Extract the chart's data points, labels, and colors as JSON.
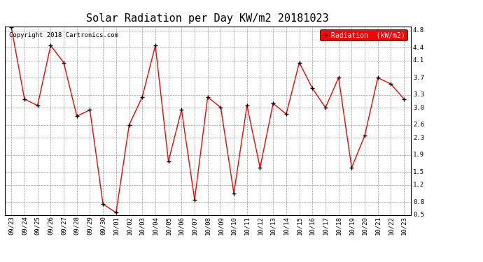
{
  "title": "Solar Radiation per Day KW/m2 20181023",
  "copyright_text": "Copyright 2018 Cartronics.com",
  "legend_label": "Radiation  (kW/m2)",
  "dates": [
    "09/23",
    "09/24",
    "09/25",
    "09/26",
    "09/27",
    "09/28",
    "09/29",
    "09/30",
    "10/01",
    "10/02",
    "10/03",
    "10/04",
    "10/05",
    "10/06",
    "10/07",
    "10/08",
    "10/09",
    "10/10",
    "10/11",
    "10/12",
    "10/13",
    "10/14",
    "10/15",
    "10/16",
    "10/17",
    "10/18",
    "10/19",
    "10/20",
    "10/21",
    "10/22",
    "10/23"
  ],
  "values": [
    4.87,
    3.2,
    3.05,
    4.45,
    4.05,
    2.8,
    2.95,
    0.75,
    0.55,
    2.6,
    3.25,
    4.45,
    1.75,
    2.95,
    0.85,
    3.25,
    3.0,
    1.0,
    3.05,
    1.6,
    3.1,
    2.85,
    4.05,
    3.45,
    3.0,
    3.7,
    1.6,
    2.35,
    3.7,
    3.55,
    3.2
  ],
  "ylim": [
    0.5,
    4.9
  ],
  "yticks": [
    0.5,
    0.8,
    1.2,
    1.5,
    1.9,
    2.3,
    2.6,
    3.0,
    3.3,
    3.7,
    4.1,
    4.4,
    4.8
  ],
  "line_color": "red",
  "marker_color": "black",
  "bg_color": "white",
  "grid_color": "#999999",
  "legend_bg": "red",
  "legend_text_color": "white",
  "title_fontsize": 11,
  "copyright_fontsize": 6.5,
  "tick_fontsize": 6.5,
  "legend_fontsize": 7
}
